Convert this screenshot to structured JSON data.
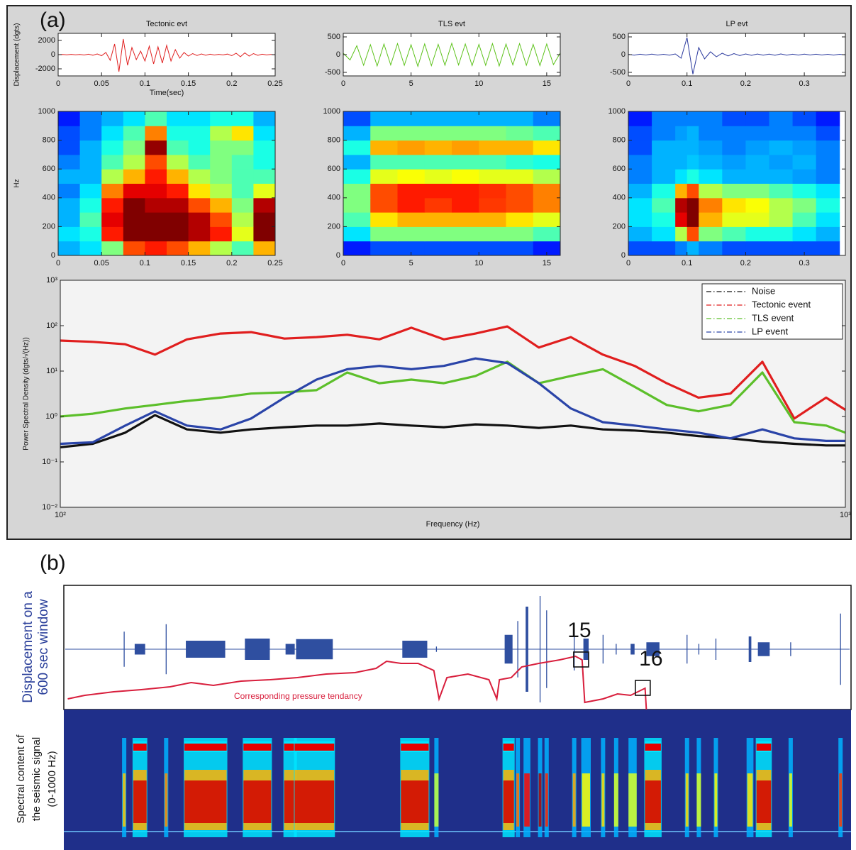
{
  "panel_labels": [
    "(a)",
    "(b)"
  ],
  "chart_data": [
    {
      "type": "line",
      "title": "Tectonic evt",
      "ylabel": "Displacement (dgts)",
      "xlabel": "Time(sec)",
      "color": "#e02020",
      "xlim": [
        0,
        0.25
      ],
      "ylim": [
        -3000,
        3000
      ],
      "xticks": [
        0,
        0.05,
        0.1,
        0.15,
        0.2,
        0.25
      ],
      "yticks": [
        -2000,
        0,
        2000
      ],
      "x": [
        0,
        0.005,
        0.01,
        0.015,
        0.02,
        0.025,
        0.03,
        0.035,
        0.04,
        0.045,
        0.05,
        0.055,
        0.06,
        0.065,
        0.07,
        0.075,
        0.08,
        0.085,
        0.09,
        0.095,
        0.1,
        0.105,
        0.11,
        0.115,
        0.12,
        0.125,
        0.13,
        0.135,
        0.14,
        0.145,
        0.15,
        0.155,
        0.16,
        0.165,
        0.17,
        0.175,
        0.18,
        0.185,
        0.19,
        0.195,
        0.2,
        0.205,
        0.21,
        0.215,
        0.22,
        0.225,
        0.23,
        0.235,
        0.24,
        0.245,
        0.25
      ],
      "values": [
        0,
        20,
        -30,
        40,
        -20,
        30,
        -50,
        60,
        -80,
        100,
        -150,
        300,
        -800,
        1500,
        -2400,
        2200,
        -1500,
        1000,
        -700,
        500,
        -900,
        1200,
        -1300,
        1100,
        -1200,
        1300,
        -900,
        700,
        -500,
        300,
        -200,
        150,
        -120,
        100,
        -80,
        60,
        -50,
        40,
        -40,
        80,
        -150,
        200,
        -300,
        250,
        -200,
        150,
        -100,
        60,
        -40,
        30,
        -20
      ]
    },
    {
      "type": "line",
      "title": "TLS evt",
      "color": "#5cc21a",
      "xlim": [
        0,
        16
      ],
      "ylim": [
        -600,
        600
      ],
      "xticks": [
        0,
        5,
        10,
        15
      ],
      "yticks": [
        -500,
        0,
        500
      ],
      "x": [
        0,
        0.5,
        1,
        1.5,
        2,
        2.5,
        3,
        3.5,
        4,
        4.5,
        5,
        5.5,
        6,
        6.5,
        7,
        7.5,
        8,
        8.5,
        9,
        9.5,
        10,
        10.5,
        11,
        11.5,
        12,
        12.5,
        13,
        13.5,
        14,
        14.5,
        15,
        15.5,
        16
      ],
      "values": [
        40,
        -150,
        250,
        -300,
        280,
        -320,
        300,
        -290,
        310,
        -300,
        280,
        -330,
        300,
        -310,
        290,
        -300,
        320,
        -290,
        300,
        -310,
        290,
        -300,
        310,
        -320,
        300,
        -290,
        310,
        -300,
        290,
        -310,
        300,
        -280,
        50
      ]
    },
    {
      "type": "line",
      "title": "LP evt",
      "color": "#2b3a9e",
      "xlim": [
        0,
        0.37
      ],
      "ylim": [
        -600,
        600
      ],
      "xticks": [
        0,
        0.1,
        0.2,
        0.3
      ],
      "yticks": [
        -500,
        0,
        500
      ],
      "x": [
        0,
        0.01,
        0.02,
        0.03,
        0.04,
        0.05,
        0.06,
        0.07,
        0.08,
        0.09,
        0.1,
        0.11,
        0.12,
        0.13,
        0.14,
        0.15,
        0.16,
        0.17,
        0.18,
        0.19,
        0.2,
        0.21,
        0.22,
        0.23,
        0.24,
        0.25,
        0.26,
        0.27,
        0.28,
        0.29,
        0.3,
        0.31,
        0.32,
        0.33,
        0.34,
        0.35,
        0.36,
        0.37
      ],
      "values": [
        10,
        -15,
        12,
        -10,
        15,
        -12,
        10,
        -15,
        20,
        -100,
        480,
        -550,
        200,
        -120,
        80,
        -60,
        40,
        -35,
        30,
        -25,
        20,
        -20,
        18,
        -15,
        15,
        -18,
        20,
        -15,
        12,
        -12,
        15,
        -10,
        12,
        -10,
        10,
        -12,
        10,
        -8
      ]
    },
    {
      "type": "heatmap",
      "ylabel": "Hz",
      "xlim": [
        0,
        0.25
      ],
      "ylim": [
        0,
        1000
      ],
      "xticks": [
        0,
        0.05,
        0.1,
        0.15,
        0.2,
        0.25
      ],
      "yticks": [
        0,
        200,
        400,
        600,
        800,
        1000
      ],
      "xbins": [
        0,
        0.025,
        0.05,
        0.075,
        0.1,
        0.125,
        0.15,
        0.175,
        0.2,
        0.225,
        0.25
      ],
      "ybins": [
        0,
        100,
        200,
        300,
        400,
        500,
        600,
        700,
        800,
        900,
        1000
      ],
      "z": [
        [
          0.3,
          0.35,
          0.5,
          0.8,
          0.85,
          0.8,
          0.7,
          0.55,
          0.45,
          0.7
        ],
        [
          0.35,
          0.4,
          0.85,
          1,
          1,
          1,
          0.95,
          0.85,
          0.6,
          1
        ],
        [
          0.3,
          0.45,
          0.9,
          1,
          1,
          1,
          0.95,
          0.8,
          0.55,
          1
        ],
        [
          0.3,
          0.4,
          0.85,
          1,
          0.95,
          0.95,
          0.8,
          0.7,
          0.5,
          0.95
        ],
        [
          0.25,
          0.35,
          0.75,
          0.9,
          0.9,
          0.85,
          0.65,
          0.55,
          0.45,
          0.6
        ],
        [
          0.3,
          0.3,
          0.55,
          0.7,
          0.85,
          0.7,
          0.55,
          0.5,
          0.45,
          0.45
        ],
        [
          0.25,
          0.3,
          0.45,
          0.55,
          0.8,
          0.55,
          0.45,
          0.5,
          0.45,
          0.4
        ],
        [
          0.2,
          0.3,
          0.4,
          0.5,
          0.98,
          0.45,
          0.4,
          0.5,
          0.5,
          0.4
        ],
        [
          0.2,
          0.25,
          0.35,
          0.45,
          0.75,
          0.4,
          0.4,
          0.55,
          0.65,
          0.35
        ],
        [
          0.15,
          0.25,
          0.3,
          0.35,
          0.45,
          0.35,
          0.35,
          0.4,
          0.4,
          0.3
        ]
      ]
    },
    {
      "type": "heatmap",
      "xlim": [
        0,
        16
      ],
      "ylim": [
        0,
        1000
      ],
      "xticks": [
        0,
        5,
        10,
        15
      ],
      "yticks": [
        0,
        200,
        400,
        600,
        800,
        1000
      ],
      "xbins": [
        0,
        2,
        4,
        6,
        8,
        10,
        12,
        14,
        16
      ],
      "ybins": [
        0,
        100,
        200,
        300,
        400,
        500,
        600,
        700,
        800,
        900,
        1000
      ],
      "z": [
        [
          0.15,
          0.2,
          0.2,
          0.2,
          0.2,
          0.2,
          0.2,
          0.15
        ],
        [
          0.35,
          0.5,
          0.5,
          0.5,
          0.5,
          0.5,
          0.5,
          0.45
        ],
        [
          0.45,
          0.65,
          0.7,
          0.7,
          0.7,
          0.7,
          0.65,
          0.6
        ],
        [
          0.5,
          0.8,
          0.85,
          0.82,
          0.85,
          0.82,
          0.8,
          0.75
        ],
        [
          0.5,
          0.8,
          0.85,
          0.85,
          0.85,
          0.83,
          0.8,
          0.75
        ],
        [
          0.4,
          0.6,
          0.62,
          0.6,
          0.62,
          0.6,
          0.6,
          0.55
        ],
        [
          0.3,
          0.45,
          0.45,
          0.45,
          0.45,
          0.45,
          0.42,
          0.4
        ],
        [
          0.4,
          0.7,
          0.72,
          0.7,
          0.72,
          0.7,
          0.7,
          0.65
        ],
        [
          0.3,
          0.5,
          0.5,
          0.5,
          0.5,
          0.5,
          0.48,
          0.45
        ],
        [
          0.2,
          0.3,
          0.3,
          0.3,
          0.3,
          0.3,
          0.3,
          0.25
        ]
      ]
    },
    {
      "type": "heatmap",
      "xlim": [
        0,
        0.37
      ],
      "ylim": [
        0,
        1000
      ],
      "xticks": [
        0,
        0.1,
        0.2,
        0.3
      ],
      "yticks": [
        0,
        200,
        400,
        600,
        800,
        1000
      ],
      "xbins": [
        0,
        0.04,
        0.08,
        0.1,
        0.12,
        0.16,
        0.2,
        0.24,
        0.28,
        0.32,
        0.36
      ],
      "ybins": [
        0,
        100,
        200,
        300,
        400,
        500,
        600,
        700,
        800,
        900,
        1000
      ],
      "z": [
        [
          0.2,
          0.2,
          0.25,
          0.3,
          0.25,
          0.2,
          0.2,
          0.2,
          0.2,
          0.2
        ],
        [
          0.3,
          0.35,
          0.55,
          0.8,
          0.5,
          0.45,
          0.4,
          0.4,
          0.35,
          0.3
        ],
        [
          0.35,
          0.4,
          0.9,
          1,
          0.7,
          0.6,
          0.6,
          0.55,
          0.45,
          0.35
        ],
        [
          0.35,
          0.45,
          0.95,
          1,
          0.75,
          0.65,
          0.62,
          0.55,
          0.5,
          0.4
        ],
        [
          0.3,
          0.4,
          0.7,
          0.8,
          0.55,
          0.5,
          0.5,
          0.45,
          0.4,
          0.35
        ],
        [
          0.25,
          0.3,
          0.35,
          0.4,
          0.35,
          0.3,
          0.3,
          0.3,
          0.28,
          0.25
        ],
        [
          0.25,
          0.3,
          0.3,
          0.32,
          0.3,
          0.28,
          0.3,
          0.28,
          0.3,
          0.25
        ],
        [
          0.2,
          0.3,
          0.3,
          0.3,
          0.28,
          0.25,
          0.28,
          0.3,
          0.28,
          0.25
        ],
        [
          0.2,
          0.25,
          0.28,
          0.3,
          0.25,
          0.25,
          0.25,
          0.25,
          0.25,
          0.2
        ],
        [
          0.15,
          0.25,
          0.25,
          0.25,
          0.25,
          0.2,
          0.2,
          0.25,
          0.2,
          0.15
        ]
      ]
    },
    {
      "type": "line",
      "xlog": true,
      "ylog": true,
      "legend": "upper right",
      "ylabel": "Power Spectral Density (dgts/√(Hz))",
      "xlabel": "Frequency (Hz)",
      "xlim": [
        100,
        1000
      ],
      "ylim": [
        0.01,
        1000
      ],
      "xticks": [
        {
          "value": 100,
          "label": "10²"
        },
        {
          "value": 1000,
          "label": "10³"
        }
      ],
      "yticks": [
        {
          "value": 0.01,
          "label": "10⁻²"
        },
        {
          "value": 0.1,
          "label": "10⁻¹"
        },
        {
          "value": 1,
          "label": "10⁰"
        },
        {
          "value": 10,
          "label": "10¹"
        },
        {
          "value": 100,
          "label": "10²"
        },
        {
          "value": 1000,
          "label": "10³"
        }
      ],
      "x": [
        100,
        110,
        121,
        132,
        145,
        160,
        175,
        193,
        212,
        232,
        255,
        280,
        308,
        338,
        371,
        407,
        447,
        491,
        539,
        592,
        650,
        714,
        784,
        861,
        945,
        1000
      ],
      "series": [
        {
          "name": "Noise",
          "color": "#111111",
          "values": [
            0.21,
            0.25,
            0.44,
            1.07,
            0.52,
            0.44,
            0.52,
            0.58,
            0.63,
            0.63,
            0.7,
            0.63,
            0.58,
            0.67,
            0.63,
            0.56,
            0.63,
            0.52,
            0.49,
            0.44,
            0.37,
            0.33,
            0.28,
            0.25,
            0.23,
            0.23
          ]
        },
        {
          "name": "Tectonic event",
          "color": "#e01e1e",
          "values": [
            47,
            44,
            39,
            23,
            50,
            67,
            72,
            52,
            56,
            63,
            50,
            90,
            50,
            67,
            96,
            33,
            56,
            23,
            13,
            5.4,
            2.6,
            3.2,
            16,
            0.9,
            2.6,
            1.4
          ]
        },
        {
          "name": "TLS event",
          "color": "#5cbf2a",
          "values": [
            1.0,
            1.15,
            1.5,
            1.8,
            2.2,
            2.6,
            3.2,
            3.4,
            3.8,
            9.3,
            5.4,
            6.5,
            5.4,
            7.8,
            16,
            5.4,
            7.8,
            11,
            4.5,
            1.8,
            1.3,
            1.8,
            9.3,
            0.75,
            0.63,
            0.44
          ]
        },
        {
          "name": "LP event",
          "color": "#2a44a8",
          "values": [
            0.25,
            0.27,
            0.63,
            1.3,
            0.63,
            0.52,
            0.9,
            2.6,
            6.5,
            11,
            13,
            11,
            13,
            19,
            15,
            5.4,
            1.5,
            0.75,
            0.63,
            0.52,
            0.44,
            0.33,
            0.52,
            0.33,
            0.29,
            0.29
          ]
        }
      ]
    },
    {
      "type": "trace",
      "ylabel_lines": [
        "Displacement on a",
        "600 sec window"
      ],
      "color": "#2f4fa0",
      "bursts": [
        {
          "start": 46,
          "end": 46,
          "amplitude": 0.33
        },
        {
          "start": 54,
          "end": 62,
          "amplitude": 0.1
        },
        {
          "start": 78,
          "end": 78,
          "amplitude": 0.47
        },
        {
          "start": 93,
          "end": 123,
          "amplitude": 0.16
        },
        {
          "start": 138,
          "end": 157,
          "amplitude": 0.2
        },
        {
          "start": 169,
          "end": 176,
          "amplitude": 0.1
        },
        {
          "start": 177,
          "end": 205,
          "amplitude": 0.19
        },
        {
          "start": 258,
          "end": 277,
          "amplitude": 0.16
        },
        {
          "start": 284,
          "end": 284,
          "amplitude": 0.05
        },
        {
          "start": 336,
          "end": 342,
          "amplitude": 0.27
        },
        {
          "start": 346,
          "end": 346,
          "amplitude": 0.53
        },
        {
          "start": 352,
          "end": 354,
          "amplitude": 0.8
        },
        {
          "start": 363,
          "end": 363,
          "amplitude": 1
        },
        {
          "start": 368,
          "end": 368,
          "amplitude": 0.73
        },
        {
          "start": 389,
          "end": 389,
          "amplitude": 0.4
        },
        {
          "start": 396,
          "end": 400,
          "amplitude": 0.2
        },
        {
          "start": 411,
          "end": 411,
          "amplitude": 0.27
        },
        {
          "start": 421,
          "end": 421,
          "amplitude": 0.1
        },
        {
          "start": 432,
          "end": 435,
          "amplitude": 0.1
        },
        {
          "start": 444,
          "end": 454,
          "amplitude": 0.13
        },
        {
          "start": 475,
          "end": 475,
          "amplitude": 0.27
        },
        {
          "start": 484,
          "end": 484,
          "amplitude": 0.1
        },
        {
          "start": 497,
          "end": 497,
          "amplitude": 0.2
        },
        {
          "start": 522,
          "end": 524,
          "amplitude": 0.24
        },
        {
          "start": 529,
          "end": 538,
          "amplitude": 0.13
        },
        {
          "start": 554,
          "end": 554,
          "amplitude": 0.13
        },
        {
          "start": 592,
          "end": 592,
          "amplitude": 0.67
        }
      ],
      "pressure": {
        "name": "Corresponding pressure tendancy",
        "color": "#d81e3c",
        "x": [
          3,
          16,
          38,
          59,
          81,
          97,
          114,
          135,
          157,
          178,
          200,
          222,
          238,
          246,
          257,
          270,
          282,
          286,
          292,
          308,
          324,
          330,
          332,
          341,
          349,
          362,
          378,
          390,
          395,
          397,
          411,
          422,
          432,
          443,
          444
        ],
        "values": [
          15,
          20,
          25,
          28,
          32,
          38,
          34,
          40,
          42,
          45,
          50,
          52,
          58,
          68,
          65,
          65,
          55,
          15,
          45,
          50,
          42,
          15,
          42,
          45,
          60,
          65,
          70,
          75,
          70,
          10,
          15,
          22,
          20,
          30,
          0
        ]
      },
      "markers": [
        {
          "label": "15",
          "x": 394
        },
        {
          "label": "16",
          "x": 441
        }
      ]
    },
    {
      "type": "spectrogram",
      "ylabel_lines": [
        "Spectral content of",
        "the seismic signal",
        "(0-1000 Hz)"
      ],
      "background": "#1f2f8a"
    }
  ]
}
